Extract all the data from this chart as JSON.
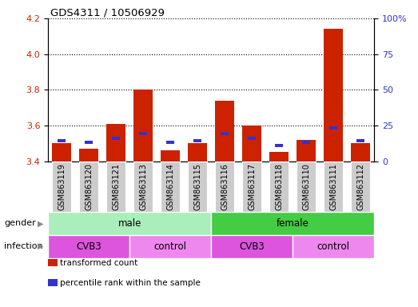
{
  "title": "GDS4311 / 10506929",
  "samples": [
    "GSM863119",
    "GSM863120",
    "GSM863121",
    "GSM863113",
    "GSM863114",
    "GSM863115",
    "GSM863116",
    "GSM863117",
    "GSM863118",
    "GSM863110",
    "GSM863111",
    "GSM863112"
  ],
  "transformed_count": [
    3.5,
    3.47,
    3.61,
    3.8,
    3.46,
    3.5,
    3.74,
    3.6,
    3.45,
    3.52,
    4.14,
    3.5
  ],
  "percentile_rank": [
    13,
    12,
    15,
    18,
    12,
    13,
    18,
    15,
    10,
    12,
    22,
    13
  ],
  "ylim_left": [
    3.4,
    4.2
  ],
  "ylim_right": [
    0,
    100
  ],
  "yticks_left": [
    3.4,
    3.6,
    3.8,
    4.0,
    4.2
  ],
  "yticks_right": [
    0,
    25,
    50,
    75,
    100
  ],
  "bar_color_red": "#cc2200",
  "bar_color_blue": "#3333cc",
  "gender_groups": [
    {
      "label": "male",
      "start": 0,
      "end": 6,
      "color": "#aaeebb"
    },
    {
      "label": "female",
      "start": 6,
      "end": 12,
      "color": "#44cc44"
    }
  ],
  "infection_groups": [
    {
      "label": "CVB3",
      "start": 0,
      "end": 3,
      "color": "#dd55dd"
    },
    {
      "label": "control",
      "start": 3,
      "end": 6,
      "color": "#ee88ee"
    },
    {
      "label": "CVB3",
      "start": 6,
      "end": 9,
      "color": "#dd55dd"
    },
    {
      "label": "control",
      "start": 9,
      "end": 12,
      "color": "#ee88ee"
    }
  ],
  "legend_items": [
    {
      "label": "transformed count",
      "color": "#cc2200"
    },
    {
      "label": "percentile rank within the sample",
      "color": "#3333cc"
    }
  ],
  "bar_width": 0.7,
  "sample_box_color": "#cccccc",
  "grid_color": "#000000",
  "label_fontsize": 7,
  "tick_fontsize": 8
}
